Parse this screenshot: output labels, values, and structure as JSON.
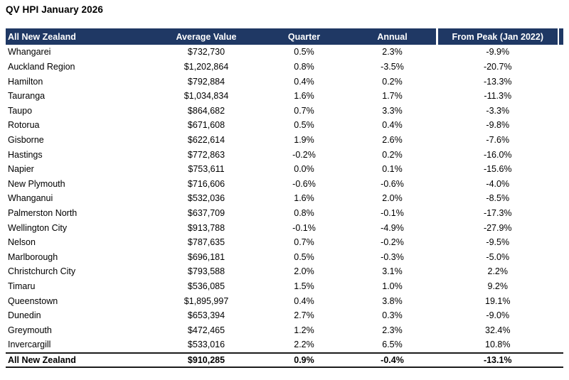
{
  "title": "QV HPI January 2026",
  "colors": {
    "header_bg": "#1F3864",
    "header_text": "#FFFFFF",
    "body_text": "#000000",
    "footer_border": "#1A1A1A"
  },
  "chart_data": {
    "type": "table",
    "title": "QV HPI January 2026",
    "columns": [
      "All New Zealand",
      "Average Value",
      "Quarter",
      "Annual",
      "From Peak (Jan 2022)"
    ],
    "rows": [
      [
        "Whangarei",
        "$732,730",
        "0.5%",
        "2.3%",
        "-9.9%"
      ],
      [
        "Auckland Region",
        "$1,202,864",
        "0.8%",
        "-3.5%",
        "-20.7%"
      ],
      [
        "Hamilton",
        "$792,884",
        "0.4%",
        "0.2%",
        "-13.3%"
      ],
      [
        "Tauranga",
        "$1,034,834",
        "1.6%",
        "1.7%",
        "-11.3%"
      ],
      [
        "Taupo",
        "$864,682",
        "0.7%",
        "3.3%",
        "-3.3%"
      ],
      [
        "Rotorua",
        "$671,608",
        "0.5%",
        "0.4%",
        "-9.8%"
      ],
      [
        "Gisborne",
        "$622,614",
        "1.9%",
        "2.6%",
        "-7.6%"
      ],
      [
        "Hastings",
        "$772,863",
        "-0.2%",
        "0.2%",
        "-16.0%"
      ],
      [
        "Napier",
        "$753,611",
        "0.0%",
        "0.1%",
        "-15.6%"
      ],
      [
        "New Plymouth",
        "$716,606",
        "-0.6%",
        "-0.6%",
        "-4.0%"
      ],
      [
        "Whanganui",
        "$532,036",
        "1.6%",
        "2.0%",
        "-8.5%"
      ],
      [
        "Palmerston North",
        "$637,709",
        "0.8%",
        "-0.1%",
        "-17.3%"
      ],
      [
        "Wellington City",
        "$913,788",
        "-0.1%",
        "-4.9%",
        "-27.9%"
      ],
      [
        "Nelson",
        "$787,635",
        "0.7%",
        "-0.2%",
        "-9.5%"
      ],
      [
        "Marlborough",
        "$696,181",
        "0.5%",
        "-0.3%",
        "-5.0%"
      ],
      [
        "Christchurch City",
        "$793,588",
        "2.0%",
        "3.1%",
        "2.2%"
      ],
      [
        "Timaru",
        "$536,085",
        "1.5%",
        "1.0%",
        "9.2%"
      ],
      [
        "Queenstown",
        "$1,895,997",
        "0.4%",
        "3.8%",
        "19.1%"
      ],
      [
        "Dunedin",
        "$653,394",
        "2.7%",
        "0.3%",
        "-9.0%"
      ],
      [
        "Greymouth",
        "$472,465",
        "1.2%",
        "2.3%",
        "32.4%"
      ],
      [
        "Invercargill",
        "$533,016",
        "2.2%",
        "6.5%",
        "10.8%"
      ]
    ],
    "footer": [
      "All New Zealand",
      "$910,285",
      "0.9%",
      "-0.4%",
      "-13.1%"
    ]
  }
}
